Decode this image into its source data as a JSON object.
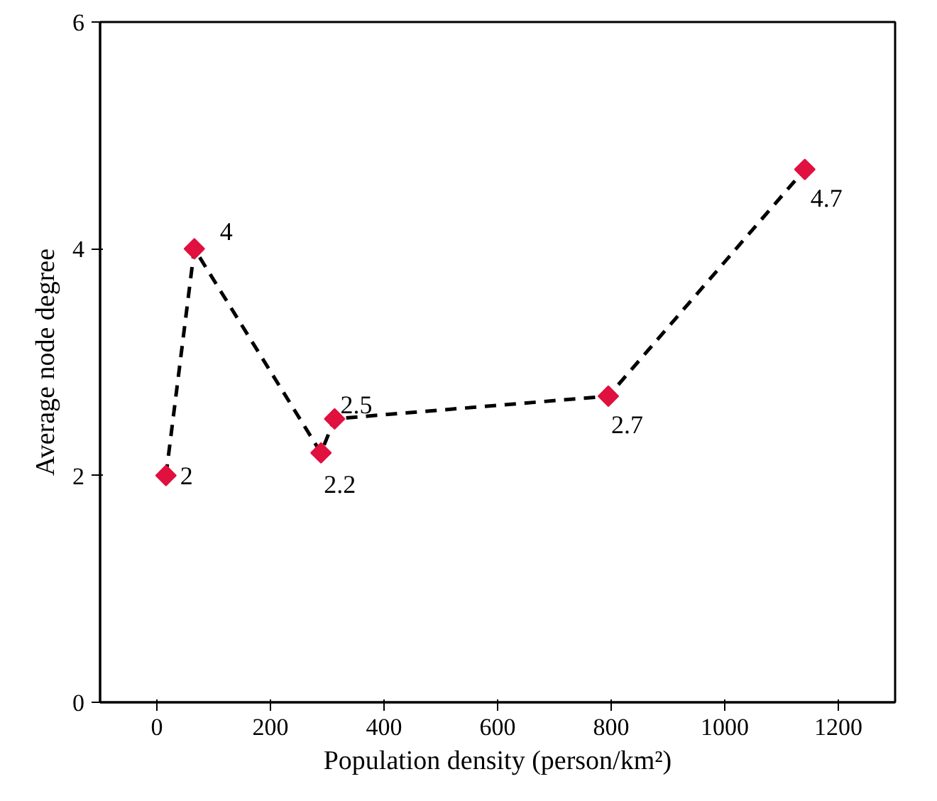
{
  "chart_data": {
    "type": "line",
    "xlabel": "Population density (person/km²)",
    "ylabel": "Average node degree",
    "x": [
      16,
      66,
      289,
      313,
      795,
      1141
    ],
    "series": [
      {
        "color": "#e0103f",
        "values": [
          2,
          4,
          2.2,
          2.5,
          2.7,
          4.7
        ]
      }
    ],
    "xlim": [
      -100,
      1300
    ],
    "xticks": [
      0,
      200,
      400,
      600,
      800,
      1000,
      1200
    ],
    "ylim": [
      0,
      6
    ],
    "yticks": [
      0,
      2,
      4,
      6
    ],
    "marker": "diamond",
    "line_style": "dashed",
    "data_labels": true,
    "grid": false
  }
}
